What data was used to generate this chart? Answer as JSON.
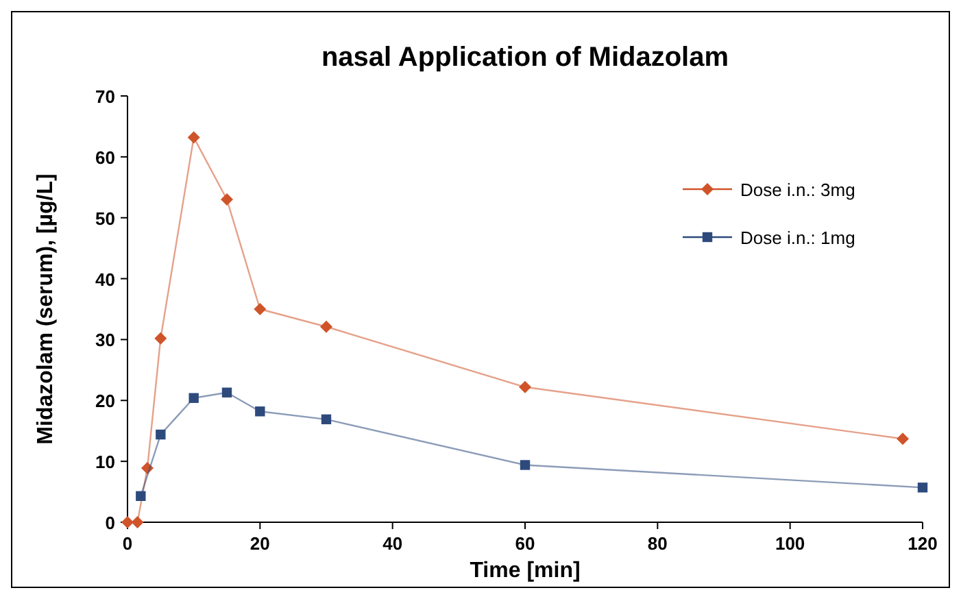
{
  "chart_data": {
    "type": "line",
    "title": "nasal Application of Midazolam",
    "xlabel": "Time [min]",
    "ylabel": "Midazolam (serum), [µg/L]",
    "xlim": [
      0,
      120
    ],
    "xticks": [
      0,
      20,
      40,
      60,
      80,
      100,
      120
    ],
    "ylim": [
      0,
      70
    ],
    "yticks": [
      0,
      10,
      20,
      30,
      40,
      50,
      60,
      70
    ],
    "grid": false,
    "legend": "top right",
    "series": [
      {
        "name": "Dose i.n.: 3mg",
        "color": "#d0542a",
        "marker": "diamond",
        "x": [
          0,
          1.5,
          3,
          5,
          10,
          15,
          20,
          30,
          60,
          117
        ],
        "values": [
          0,
          0,
          8.9,
          30.2,
          63.2,
          53.0,
          35.0,
          32.1,
          22.2,
          13.7
        ]
      },
      {
        "name": "Dose i.n.: 1mg",
        "color": "#2e4a7d",
        "marker": "square",
        "x": [
          2,
          5,
          10,
          15,
          20,
          30,
          60,
          120
        ],
        "values": [
          4.3,
          14.4,
          20.4,
          21.3,
          18.2,
          16.9,
          9.4,
          5.7
        ]
      }
    ]
  }
}
